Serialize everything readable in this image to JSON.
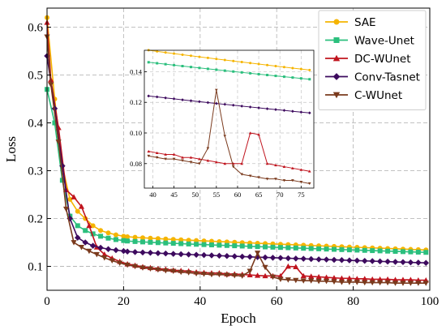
{
  "chart_data": {
    "type": "line",
    "xlabel": "Epoch",
    "ylabel": "Loss",
    "xlim": [
      0,
      100
    ],
    "ylim": [
      0.05,
      0.64
    ],
    "xticks": [
      "0",
      "20",
      "40",
      "60",
      "80",
      "100"
    ],
    "yticks": [
      "0.1",
      "0.2",
      "0.3",
      "0.4",
      "0.5",
      "0.6"
    ],
    "grid": true,
    "legend_position": "top-right",
    "series": [
      {
        "name": "SAE",
        "color": "#f5b400",
        "marker": "circle",
        "start": [
          [
            0,
            0.62
          ],
          [
            2,
            0.45
          ],
          [
            4,
            0.31
          ],
          [
            6,
            0.24
          ],
          [
            8,
            0.215
          ],
          [
            10,
            0.2
          ],
          [
            12,
            0.185
          ],
          [
            14,
            0.175
          ],
          [
            16,
            0.17
          ],
          [
            18,
            0.166
          ],
          [
            20,
            0.163
          ]
        ],
        "tail": {
          "from": 21,
          "y0": 0.162,
          "y1": 0.134
        }
      },
      {
        "name": "Wave-Unet",
        "color": "#2bbf7d",
        "marker": "square",
        "start": [
          [
            0,
            0.47
          ],
          [
            2,
            0.4
          ],
          [
            4,
            0.28
          ],
          [
            6,
            0.205
          ],
          [
            8,
            0.185
          ],
          [
            10,
            0.175
          ],
          [
            12,
            0.168
          ],
          [
            14,
            0.163
          ],
          [
            16,
            0.159
          ],
          [
            18,
            0.156
          ],
          [
            20,
            0.154
          ]
        ],
        "tail": {
          "from": 21,
          "y0": 0.153,
          "y1": 0.129
        }
      },
      {
        "name": "DC-WUnet",
        "color": "#c0141e",
        "marker": "triangle-up",
        "points": [
          [
            0,
            0.61
          ],
          [
            1,
            0.49
          ],
          [
            3,
            0.39
          ],
          [
            5,
            0.26
          ],
          [
            7,
            0.245
          ],
          [
            9,
            0.225
          ],
          [
            11,
            0.185
          ],
          [
            13,
            0.14
          ],
          [
            15,
            0.125
          ],
          [
            17,
            0.117
          ],
          [
            19,
            0.11
          ],
          [
            21,
            0.105
          ],
          [
            23,
            0.102
          ],
          [
            25,
            0.099
          ],
          [
            27,
            0.097
          ],
          [
            29,
            0.095
          ],
          [
            31,
            0.094
          ],
          [
            33,
            0.092
          ],
          [
            35,
            0.091
          ],
          [
            37,
            0.09
          ],
          [
            39,
            0.088
          ],
          [
            41,
            0.087
          ],
          [
            43,
            0.086
          ],
          [
            45,
            0.086
          ],
          [
            47,
            0.084
          ],
          [
            49,
            0.084
          ],
          [
            51,
            0.083
          ],
          [
            53,
            0.082
          ],
          [
            55,
            0.081
          ],
          [
            57,
            0.08
          ],
          [
            59,
            0.08
          ],
          [
            61,
            0.08
          ],
          [
            63,
            0.1
          ],
          [
            65,
            0.099
          ],
          [
            67,
            0.08
          ],
          [
            69,
            0.079
          ],
          [
            71,
            0.078
          ],
          [
            73,
            0.077
          ],
          [
            75,
            0.076
          ],
          [
            77,
            0.075
          ],
          [
            79,
            0.075
          ],
          [
            81,
            0.074
          ],
          [
            83,
            0.074
          ],
          [
            85,
            0.073
          ],
          [
            87,
            0.073
          ],
          [
            89,
            0.073
          ],
          [
            91,
            0.072
          ],
          [
            93,
            0.072
          ],
          [
            95,
            0.072
          ],
          [
            97,
            0.071
          ],
          [
            99,
            0.071
          ]
        ]
      },
      {
        "name": "Conv-Tasnet",
        "color": "#3d0a5e",
        "marker": "diamond",
        "start": [
          [
            0,
            0.54
          ],
          [
            2,
            0.43
          ],
          [
            4,
            0.31
          ],
          [
            6,
            0.2
          ],
          [
            8,
            0.16
          ],
          [
            10,
            0.15
          ],
          [
            12,
            0.143
          ],
          [
            14,
            0.139
          ],
          [
            16,
            0.136
          ],
          [
            18,
            0.134
          ],
          [
            20,
            0.132
          ]
        ],
        "tail": {
          "from": 21,
          "y0": 0.131,
          "y1": 0.107
        }
      },
      {
        "name": "C-WUnet",
        "color": "#7a3a1d",
        "marker": "triangle-down",
        "points": [
          [
            0,
            0.58
          ],
          [
            1,
            0.48
          ],
          [
            3,
            0.36
          ],
          [
            5,
            0.22
          ],
          [
            7,
            0.15
          ],
          [
            9,
            0.14
          ],
          [
            11,
            0.132
          ],
          [
            13,
            0.125
          ],
          [
            15,
            0.118
          ],
          [
            17,
            0.112
          ],
          [
            19,
            0.107
          ],
          [
            21,
            0.103
          ],
          [
            23,
            0.1
          ],
          [
            25,
            0.097
          ],
          [
            27,
            0.095
          ],
          [
            29,
            0.093
          ],
          [
            31,
            0.091
          ],
          [
            33,
            0.09
          ],
          [
            35,
            0.088
          ],
          [
            37,
            0.087
          ],
          [
            39,
            0.085
          ],
          [
            41,
            0.084
          ],
          [
            43,
            0.083
          ],
          [
            45,
            0.083
          ],
          [
            47,
            0.082
          ],
          [
            49,
            0.081
          ],
          [
            51,
            0.08
          ],
          [
            53,
            0.09
          ],
          [
            55,
            0.128
          ],
          [
            57,
            0.098
          ],
          [
            59,
            0.078
          ],
          [
            61,
            0.073
          ],
          [
            63,
            0.072
          ],
          [
            65,
            0.071
          ],
          [
            67,
            0.07
          ],
          [
            69,
            0.07
          ],
          [
            71,
            0.069
          ],
          [
            73,
            0.069
          ],
          [
            75,
            0.068
          ],
          [
            77,
            0.067
          ],
          [
            79,
            0.067
          ],
          [
            81,
            0.067
          ],
          [
            83,
            0.066
          ],
          [
            85,
            0.066
          ],
          [
            87,
            0.066
          ],
          [
            89,
            0.066
          ],
          [
            91,
            0.065
          ],
          [
            93,
            0.065
          ],
          [
            95,
            0.065
          ],
          [
            97,
            0.065
          ],
          [
            99,
            0.065
          ]
        ]
      }
    ],
    "inset": {
      "xlim": [
        38,
        78
      ],
      "ylim": [
        0.064,
        0.154
      ],
      "xticks": [
        "40",
        "45",
        "50",
        "55",
        "60",
        "65",
        "70",
        "75"
      ],
      "yticks": [
        "0.08",
        "0.10",
        "0.12",
        "0.14"
      ],
      "grid": true
    }
  }
}
